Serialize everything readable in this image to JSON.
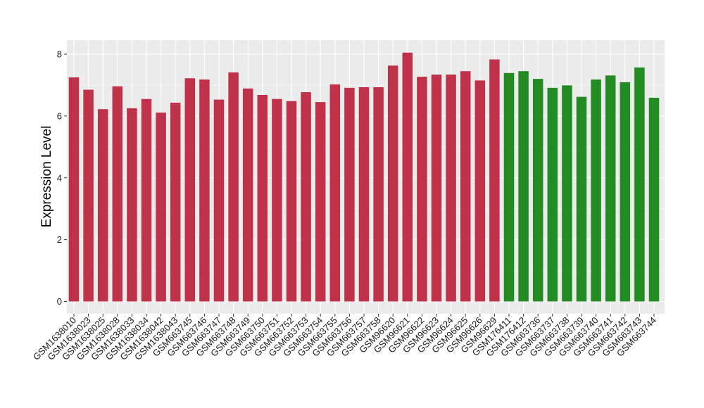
{
  "chart_data": {
    "type": "bar",
    "title": "",
    "xlabel": "",
    "ylabel": "Expression Level",
    "ylim": [
      0,
      8.2
    ],
    "y_ticks": [
      "0",
      "2",
      "4",
      "6",
      "8"
    ],
    "grid": true,
    "legend": "none",
    "colors": {
      "group_1": "#C0314A",
      "group_2": "#228B22",
      "panel": "#EBEBEB",
      "gridline": "#FFFFFF"
    },
    "categories": [
      "GSM1638010",
      "GSM1638023",
      "GSM1638025",
      "GSM1638028",
      "GSM1638033",
      "GSM1638034",
      "GSM1638042",
      "GSM1638043",
      "GSM663745",
      "GSM663746",
      "GSM663747",
      "GSM663748",
      "GSM663749",
      "GSM663750",
      "GSM663751",
      "GSM663752",
      "GSM663753",
      "GSM663754",
      "GSM663755",
      "GSM663756",
      "GSM663757",
      "GSM663758",
      "GSM96620",
      "GSM96621",
      "GSM96622",
      "GSM96623",
      "GSM96624",
      "GSM96625",
      "GSM96626",
      "GSM96629",
      "GSM176411",
      "GSM176412",
      "GSM663736",
      "GSM663737",
      "GSM663738",
      "GSM663739",
      "GSM663740",
      "GSM663741",
      "GSM663742",
      "GSM663743",
      "GSM663744"
    ],
    "values": [
      7.25,
      6.85,
      6.22,
      6.96,
      6.25,
      6.55,
      6.11,
      6.43,
      7.22,
      7.18,
      6.53,
      7.41,
      6.89,
      6.68,
      6.55,
      6.48,
      6.77,
      6.45,
      7.02,
      6.91,
      6.93,
      6.93,
      7.63,
      8.05,
      7.27,
      7.34,
      7.34,
      7.45,
      7.15,
      7.83,
      7.39,
      7.45,
      7.2,
      6.91,
      6.99,
      6.62,
      7.18,
      7.31,
      7.09,
      7.57,
      6.59
    ],
    "groups": [
      1,
      1,
      1,
      1,
      1,
      1,
      1,
      1,
      1,
      1,
      1,
      1,
      1,
      1,
      1,
      1,
      1,
      1,
      1,
      1,
      1,
      1,
      1,
      1,
      1,
      1,
      1,
      1,
      1,
      1,
      2,
      2,
      2,
      2,
      2,
      2,
      2,
      2,
      2,
      2,
      2
    ]
  }
}
